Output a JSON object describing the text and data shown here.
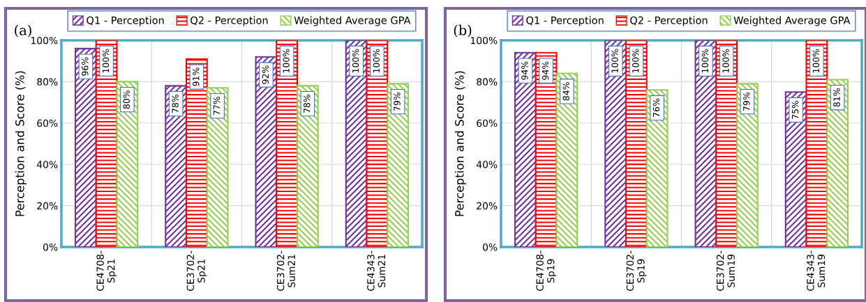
{
  "chart_data": [
    {
      "type": "bar",
      "annotations": [
        "(a)"
      ],
      "ylabel": "Perception and Score (%)",
      "categories": [
        "CE4708-\nSp21",
        "CE3702-\nSp21",
        "CE3702-\nSum21",
        "CE4343-\nSum21"
      ],
      "series": [
        {
          "name": "Q1 - Perception",
          "color": "#7030a0",
          "values": [
            96,
            78,
            92,
            100
          ],
          "value_labels": [
            "96%",
            "78%",
            "92%",
            "100%"
          ]
        },
        {
          "name": "Q2 - Perception",
          "color": "#ff0000",
          "values": [
            100,
            91,
            100,
            100
          ],
          "value_labels": [
            "100%",
            "91%",
            "100%",
            "100%"
          ]
        },
        {
          "name": "Weighted Average GPA",
          "color": "#92d050",
          "values": [
            80,
            77,
            78,
            79
          ],
          "value_labels": [
            "80%",
            "77%",
            "78%",
            "79%"
          ]
        }
      ],
      "ylim": [
        0,
        100
      ],
      "yticks": [
        {
          "value": 0,
          "label": "0%"
        },
        {
          "value": 20,
          "label": "20%"
        },
        {
          "value": 40,
          "label": "40%"
        },
        {
          "value": 60,
          "label": "60%"
        },
        {
          "value": 80,
          "label": "80%"
        },
        {
          "value": 100,
          "label": "100%"
        }
      ],
      "grid": true,
      "legend": "top"
    },
    {
      "type": "bar",
      "annotations": [
        "(b)"
      ],
      "ylabel": "Perception and Score (%)",
      "categories": [
        "CE4708-\nSp19",
        "CE3702-\nSp19",
        "CE3702-\nSum19",
        "CE4343-\nSum19"
      ],
      "series": [
        {
          "name": "Q1 - Perception",
          "color": "#7030a0",
          "values": [
            94,
            100,
            100,
            75
          ],
          "value_labels": [
            "94%",
            "100%",
            "100%",
            "75%"
          ]
        },
        {
          "name": "Q2 - Perception",
          "color": "#ff0000",
          "values": [
            94,
            100,
            100,
            100
          ],
          "value_labels": [
            "94%",
            "100%",
            "100%",
            "100%"
          ]
        },
        {
          "name": "Weighted Average GPA",
          "color": "#92d050",
          "values": [
            84,
            76,
            79,
            81
          ],
          "value_labels": [
            "84%",
            "76%",
            "79%",
            "81%"
          ]
        }
      ],
      "ylim": [
        0,
        100
      ],
      "yticks": [
        {
          "value": 0,
          "label": "0%"
        },
        {
          "value": 20,
          "label": "20%"
        },
        {
          "value": 40,
          "label": "40%"
        },
        {
          "value": 60,
          "label": "60%"
        },
        {
          "value": 80,
          "label": "80%"
        },
        {
          "value": 100,
          "label": "100%"
        }
      ],
      "grid": true,
      "legend": "top"
    }
  ]
}
